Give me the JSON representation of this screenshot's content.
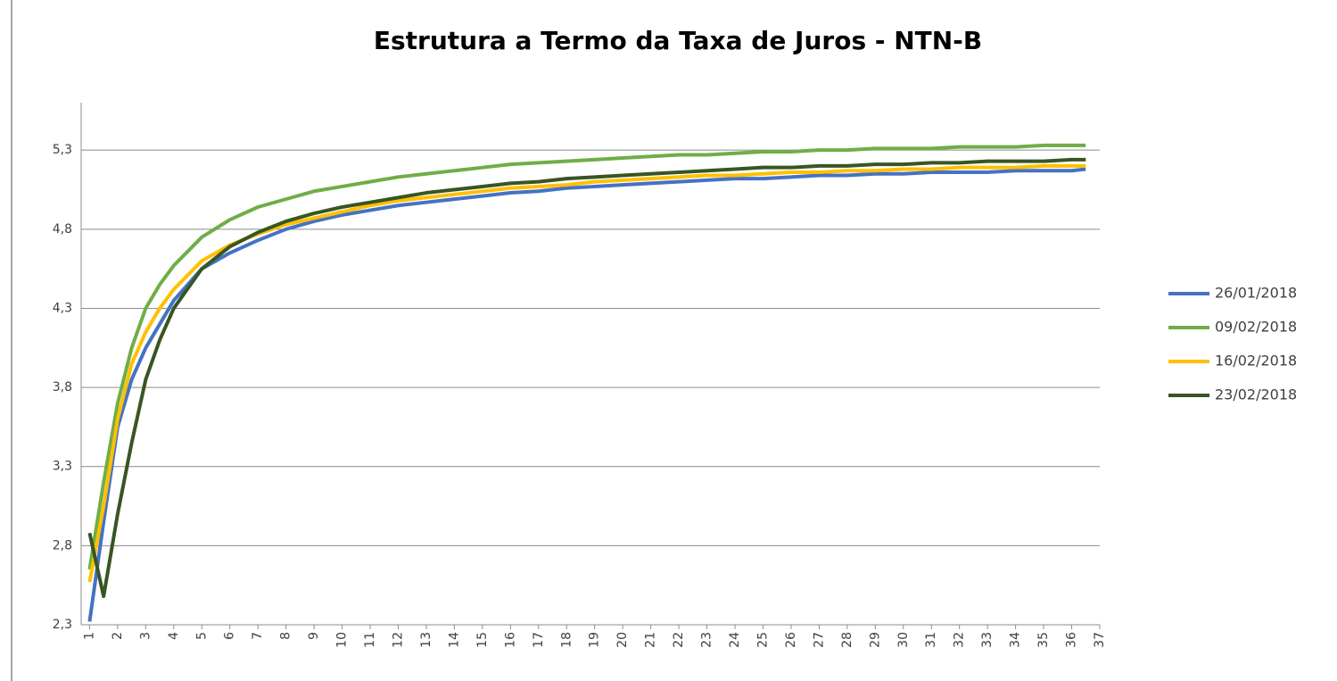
{
  "chart_data": {
    "type": "line",
    "title": "Estrutura a Termo da Taxa de Juros - NTN-B",
    "x": [
      1,
      1.5,
      2,
      2.5,
      3,
      3.5,
      4,
      5,
      6,
      7,
      8,
      9,
      10,
      11,
      12,
      13,
      14,
      15,
      16,
      17,
      18,
      19,
      20,
      21,
      22,
      23,
      24,
      25,
      26,
      27,
      28,
      29,
      30,
      31,
      32,
      33,
      34,
      35,
      36,
      36.5
    ],
    "series": [
      {
        "name": "26/01/2018",
        "color": "#4472c4",
        "values": [
          2.32,
          2.95,
          3.55,
          3.85,
          4.05,
          4.2,
          4.35,
          4.55,
          4.65,
          4.73,
          4.8,
          4.85,
          4.89,
          4.92,
          4.95,
          4.97,
          4.99,
          5.01,
          5.03,
          5.04,
          5.06,
          5.07,
          5.08,
          5.09,
          5.1,
          5.11,
          5.12,
          5.12,
          5.13,
          5.14,
          5.14,
          5.15,
          5.15,
          5.16,
          5.16,
          5.16,
          5.17,
          5.17,
          5.17,
          5.18
        ]
      },
      {
        "name": "09/02/2018",
        "color": "#70ad47",
        "values": [
          2.65,
          3.2,
          3.7,
          4.05,
          4.3,
          4.45,
          4.57,
          4.75,
          4.86,
          4.94,
          4.99,
          5.04,
          5.07,
          5.1,
          5.13,
          5.15,
          5.17,
          5.19,
          5.21,
          5.22,
          5.23,
          5.24,
          5.25,
          5.26,
          5.27,
          5.27,
          5.28,
          5.29,
          5.29,
          5.3,
          5.3,
          5.31,
          5.31,
          5.31,
          5.32,
          5.32,
          5.32,
          5.33,
          5.33,
          5.33
        ]
      },
      {
        "name": "16/02/2018",
        "color": "#ffc000",
        "values": [
          2.57,
          3.05,
          3.6,
          3.95,
          4.15,
          4.3,
          4.42,
          4.6,
          4.7,
          4.77,
          4.83,
          4.87,
          4.91,
          4.95,
          4.98,
          5.0,
          5.02,
          5.04,
          5.06,
          5.07,
          5.08,
          5.1,
          5.11,
          5.12,
          5.13,
          5.14,
          5.14,
          5.15,
          5.16,
          5.16,
          5.17,
          5.17,
          5.18,
          5.18,
          5.19,
          5.19,
          5.19,
          5.2,
          5.2,
          5.2
        ]
      },
      {
        "name": "23/02/2018",
        "color": "#375623",
        "values": [
          2.88,
          2.48,
          3.0,
          3.45,
          3.85,
          4.1,
          4.3,
          4.55,
          4.69,
          4.78,
          4.85,
          4.9,
          4.94,
          4.97,
          5.0,
          5.03,
          5.05,
          5.07,
          5.09,
          5.1,
          5.12,
          5.13,
          5.14,
          5.15,
          5.16,
          5.17,
          5.18,
          5.19,
          5.19,
          5.2,
          5.2,
          5.21,
          5.21,
          5.22,
          5.22,
          5.23,
          5.23,
          5.23,
          5.24,
          5.24
        ]
      }
    ],
    "xlim": [
      0.7,
      37
    ],
    "xticks": [
      1,
      2,
      3,
      4,
      5,
      6,
      7,
      8,
      9,
      10,
      11,
      12,
      13,
      14,
      15,
      16,
      17,
      18,
      19,
      20,
      21,
      22,
      23,
      24,
      25,
      26,
      27,
      28,
      29,
      30,
      31,
      32,
      33,
      34,
      35,
      36,
      37
    ],
    "ylim": [
      2.3,
      5.6
    ],
    "yticks": [
      {
        "value": 2.3,
        "label": "2,3"
      },
      {
        "value": 2.8,
        "label": "2,8"
      },
      {
        "value": 3.3,
        "label": "3,3"
      },
      {
        "value": 3.8,
        "label": "3,8"
      },
      {
        "value": 4.3,
        "label": "4,3"
      },
      {
        "value": 4.8,
        "label": "4,8"
      },
      {
        "value": 5.3,
        "label": "5,3"
      }
    ],
    "grid": true,
    "legend": "right"
  }
}
